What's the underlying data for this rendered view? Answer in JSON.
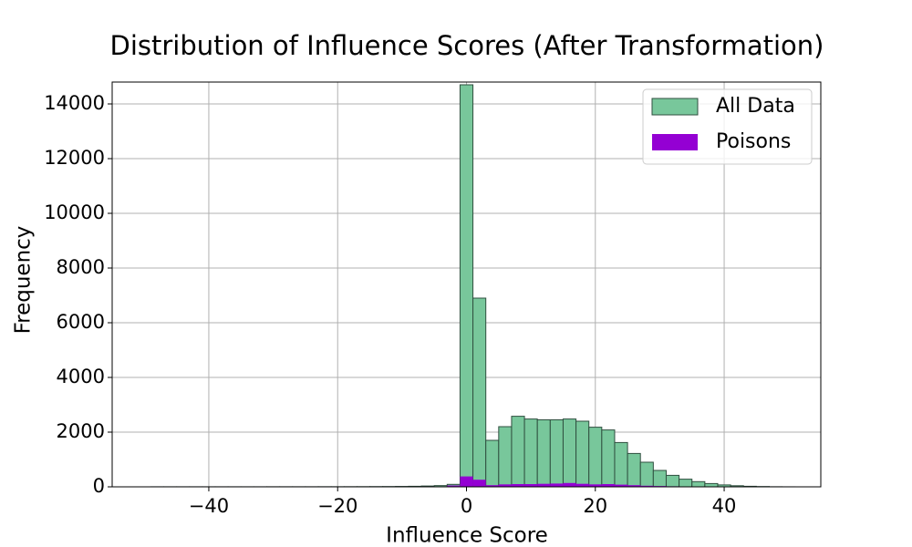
{
  "chart_data": {
    "type": "histogram",
    "title": "Distribution of Influence Scores (After Transformation)",
    "x_label": "Influence Score",
    "y_label": "Frequency",
    "bins": [
      -49,
      -47,
      -45,
      -43,
      -41,
      -39,
      -37,
      -35,
      -33,
      -31,
      -29,
      -27,
      -25,
      -23,
      -21,
      -19,
      -17,
      -15,
      -13,
      -11,
      -9,
      -7,
      -5,
      -3,
      -1,
      1,
      3,
      5,
      7,
      9,
      11,
      13,
      15,
      17,
      19,
      21,
      23,
      25,
      27,
      29,
      31,
      33,
      35,
      37,
      39,
      41,
      43,
      45,
      47,
      49,
      51
    ],
    "series": [
      {
        "name": "All Data",
        "color": "#78c79b",
        "edgecolor": "#2f4f3f",
        "values": [
          2,
          2,
          2,
          2,
          2,
          2,
          2,
          2,
          2,
          3,
          3,
          3,
          3,
          4,
          4,
          5,
          6,
          8,
          10,
          14,
          20,
          30,
          45,
          90,
          14700,
          6900,
          1700,
          2200,
          2580,
          2480,
          2450,
          2450,
          2480,
          2400,
          2180,
          2080,
          1620,
          1220,
          900,
          600,
          420,
          280,
          190,
          120,
          70,
          40,
          20,
          10,
          3,
          1
        ]
      },
      {
        "name": "Poisons",
        "color": "#9400d3",
        "values": [
          0,
          0,
          0,
          0,
          0,
          0,
          0,
          0,
          0,
          0,
          0,
          0,
          0,
          0,
          0,
          0,
          0,
          0,
          0,
          0,
          0,
          0,
          5,
          50,
          380,
          260,
          60,
          90,
          100,
          100,
          110,
          120,
          140,
          110,
          90,
          100,
          80,
          60,
          40,
          30,
          20,
          10,
          5,
          3,
          0,
          0,
          0,
          0,
          0,
          0
        ]
      }
    ],
    "xlim": [
      -55,
      55
    ],
    "ylim": [
      0,
      14800
    ],
    "xticks": [
      {
        "value": -40,
        "label": "−40"
      },
      {
        "value": -20,
        "label": "−20"
      },
      0,
      20,
      40
    ],
    "yticks": [
      0,
      2000,
      4000,
      6000,
      8000,
      10000,
      12000,
      14000
    ],
    "grid": true,
    "legend": "upper right"
  }
}
